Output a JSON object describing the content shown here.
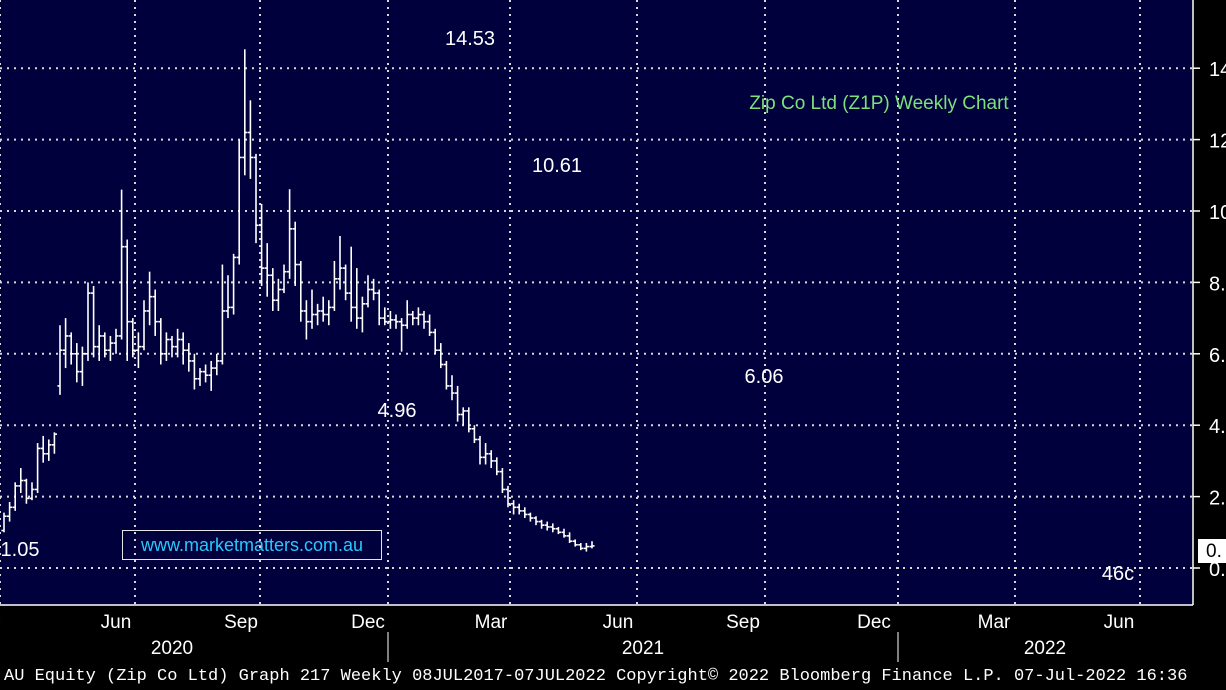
{
  "window": {
    "footer_text": "AU Equity (Zip Co Ltd) Graph 217  Weekly 08JUL2017-07JUL2022 Copyright© 2022 Bloomberg Finance L.P. 07-Jul-2022 16:36"
  },
  "watermark": "www.marketmatters.com.au",
  "colors": {
    "background": "#000000",
    "plot_background": "#00003c",
    "grid": "#d9d9d9",
    "bars": "#ffffff",
    "title": "#7de07a",
    "watermark_text": "#28c8ff"
  },
  "chart_data": {
    "type": "ohlc",
    "title": "Zip Co Ltd (Z1P) Weekly Chart",
    "xlabel": "",
    "ylabel": "",
    "y_tick_labels": [
      "14",
      "12",
      "10",
      "8.",
      "6.",
      "4.",
      "2.",
      "0."
    ],
    "y_ticks": [
      14,
      12,
      10,
      8,
      6,
      4,
      2,
      0
    ],
    "ylim": [
      -1,
      16
    ],
    "grid": true,
    "last_price_label": "0.",
    "month_labels": [
      "Jun",
      "Sep",
      "Dec",
      "Mar",
      "Jun",
      "Sep",
      "Dec",
      "Mar",
      "Jun"
    ],
    "year_labels": [
      "2020",
      "2021",
      "2022"
    ],
    "annotations": [
      {
        "label": "14.53",
        "value": 14.53
      },
      {
        "label": "10.61",
        "value": 10.61
      },
      {
        "label": "4.96",
        "value": 4.96
      },
      {
        "label": "6.06",
        "value": 6.06
      },
      {
        "label": "1.05",
        "value": 1.05
      },
      {
        "label": "46c",
        "value": 0.46
      }
    ],
    "series": [
      {
        "values": [
          [
            1.05,
            1.55,
            1.0,
            1.45
          ],
          [
            1.45,
            1.85,
            1.3,
            1.7
          ],
          [
            1.7,
            2.4,
            1.6,
            2.3
          ],
          [
            2.3,
            2.8,
            2.1,
            2.45
          ],
          [
            2.45,
            2.5,
            1.8,
            1.95
          ],
          [
            1.95,
            2.4,
            1.9,
            2.2
          ],
          [
            2.2,
            3.5,
            2.1,
            3.35
          ],
          [
            3.35,
            3.7,
            2.95,
            3.2
          ],
          [
            3.2,
            3.6,
            3.0,
            3.45
          ],
          [
            3.45,
            3.8,
            3.2,
            3.75
          ],
          [
            5.1,
            6.8,
            4.85,
            6.1
          ],
          [
            6.1,
            7.0,
            5.6,
            6.5
          ],
          [
            6.5,
            6.6,
            5.7,
            6.0
          ],
          [
            6.0,
            6.3,
            5.2,
            5.5
          ],
          [
            5.5,
            6.2,
            5.1,
            6.0
          ],
          [
            6.0,
            8.0,
            5.8,
            7.7
          ],
          [
            7.7,
            7.9,
            5.9,
            6.2
          ],
          [
            6.2,
            6.8,
            5.8,
            6.5
          ],
          [
            6.5,
            6.6,
            5.9,
            6.1
          ],
          [
            6.1,
            6.5,
            5.8,
            6.3
          ],
          [
            6.3,
            6.7,
            6.0,
            6.5
          ],
          [
            6.5,
            10.6,
            6.4,
            9.0
          ],
          [
            9.0,
            9.2,
            5.8,
            6.9
          ],
          [
            6.9,
            7.0,
            5.9,
            6.1
          ],
          [
            6.1,
            6.6,
            5.6,
            6.2
          ],
          [
            6.2,
            7.5,
            6.1,
            7.2
          ],
          [
            7.2,
            8.3,
            6.8,
            7.6
          ],
          [
            7.6,
            7.8,
            6.5,
            6.9
          ],
          [
            6.9,
            7.0,
            5.7,
            6.0
          ],
          [
            6.0,
            6.6,
            5.8,
            6.4
          ],
          [
            6.4,
            6.5,
            5.9,
            6.2
          ],
          [
            6.2,
            6.7,
            5.9,
            6.4
          ],
          [
            6.4,
            6.6,
            5.7,
            6.1
          ],
          [
            6.1,
            6.3,
            5.5,
            5.8
          ],
          [
            5.8,
            6.0,
            5.0,
            5.3
          ],
          [
            5.3,
            5.6,
            5.1,
            5.5
          ],
          [
            5.5,
            5.7,
            5.2,
            5.4
          ],
          [
            5.4,
            5.8,
            4.96,
            5.6
          ],
          [
            5.6,
            6.0,
            5.4,
            5.8
          ],
          [
            5.8,
            8.5,
            5.7,
            7.2
          ],
          [
            7.2,
            8.2,
            7.0,
            7.3
          ],
          [
            7.3,
            8.8,
            7.1,
            8.7
          ],
          [
            8.7,
            12.0,
            8.5,
            11.5
          ],
          [
            11.5,
            14.53,
            11.0,
            12.2
          ],
          [
            12.2,
            13.1,
            10.9,
            11.5
          ],
          [
            11.5,
            11.6,
            9.1,
            9.6
          ],
          [
            9.6,
            10.2,
            7.9,
            8.4
          ],
          [
            8.4,
            9.1,
            7.6,
            8.2
          ],
          [
            8.2,
            8.4,
            7.2,
            7.5
          ],
          [
            7.5,
            8.1,
            7.2,
            7.8
          ],
          [
            7.8,
            8.5,
            7.7,
            8.3
          ],
          [
            8.3,
            10.61,
            8.1,
            9.5
          ],
          [
            9.5,
            9.7,
            7.9,
            8.5
          ],
          [
            8.5,
            8.6,
            6.9,
            7.2
          ],
          [
            7.2,
            7.5,
            6.4,
            6.9
          ],
          [
            6.9,
            7.8,
            6.7,
            7.1
          ],
          [
            7.1,
            7.4,
            6.8,
            7.2
          ],
          [
            7.2,
            7.6,
            6.9,
            7.1
          ],
          [
            7.1,
            7.5,
            6.8,
            7.3
          ],
          [
            7.3,
            8.6,
            7.2,
            8.1
          ],
          [
            8.1,
            9.3,
            7.8,
            8.4
          ],
          [
            8.4,
            8.5,
            7.5,
            7.7
          ],
          [
            7.7,
            9.0,
            6.9,
            7.3
          ],
          [
            7.3,
            8.4,
            6.7,
            7.0
          ],
          [
            7.0,
            7.6,
            6.6,
            7.4
          ],
          [
            7.4,
            8.2,
            7.3,
            7.8
          ],
          [
            7.8,
            8.1,
            7.5,
            7.7
          ],
          [
            7.7,
            7.8,
            6.8,
            7.0
          ],
          [
            7.0,
            7.3,
            6.8,
            6.9
          ],
          [
            6.9,
            7.2,
            6.7,
            6.95
          ],
          [
            6.95,
            7.1,
            6.7,
            6.9
          ],
          [
            6.9,
            7.0,
            6.06,
            6.8
          ],
          [
            6.8,
            7.5,
            6.7,
            7.1
          ],
          [
            7.1,
            7.2,
            6.8,
            7.0
          ],
          [
            7.0,
            7.3,
            6.8,
            7.1
          ],
          [
            7.1,
            7.2,
            6.7,
            6.9
          ],
          [
            6.9,
            7.1,
            6.5,
            6.6
          ],
          [
            6.6,
            6.7,
            6.0,
            6.1
          ],
          [
            6.1,
            6.3,
            5.6,
            5.7
          ],
          [
            5.7,
            5.8,
            5.0,
            5.1
          ],
          [
            5.1,
            5.4,
            4.7,
            4.9
          ],
          [
            4.9,
            5.1,
            4.1,
            4.3
          ],
          [
            4.3,
            4.5,
            4.0,
            4.4
          ],
          [
            4.4,
            4.5,
            3.8,
            3.9
          ],
          [
            3.9,
            4.0,
            3.5,
            3.6
          ],
          [
            3.6,
            3.7,
            2.9,
            3.1
          ],
          [
            3.1,
            3.5,
            2.9,
            3.2
          ],
          [
            3.2,
            3.3,
            2.8,
            3.0
          ],
          [
            3.0,
            3.1,
            2.6,
            2.7
          ],
          [
            2.7,
            2.8,
            2.1,
            2.2
          ],
          [
            2.2,
            2.3,
            1.7,
            1.8
          ],
          [
            1.8,
            1.9,
            1.5,
            1.7
          ],
          [
            1.7,
            1.8,
            1.5,
            1.6
          ],
          [
            1.6,
            1.7,
            1.4,
            1.5
          ],
          [
            1.5,
            1.55,
            1.3,
            1.4
          ],
          [
            1.4,
            1.45,
            1.2,
            1.3
          ],
          [
            1.3,
            1.35,
            1.1,
            1.2
          ],
          [
            1.2,
            1.3,
            1.05,
            1.15
          ],
          [
            1.15,
            1.25,
            1.0,
            1.1
          ],
          [
            1.1,
            1.15,
            0.95,
            1.0
          ],
          [
            1.0,
            1.1,
            0.85,
            0.9
          ],
          [
            0.9,
            1.0,
            0.7,
            0.75
          ],
          [
            0.75,
            0.8,
            0.6,
            0.65
          ],
          [
            0.65,
            0.7,
            0.5,
            0.55
          ],
          [
            0.55,
            0.7,
            0.46,
            0.6
          ],
          [
            0.6,
            0.75,
            0.55,
            0.62
          ]
        ]
      }
    ]
  }
}
